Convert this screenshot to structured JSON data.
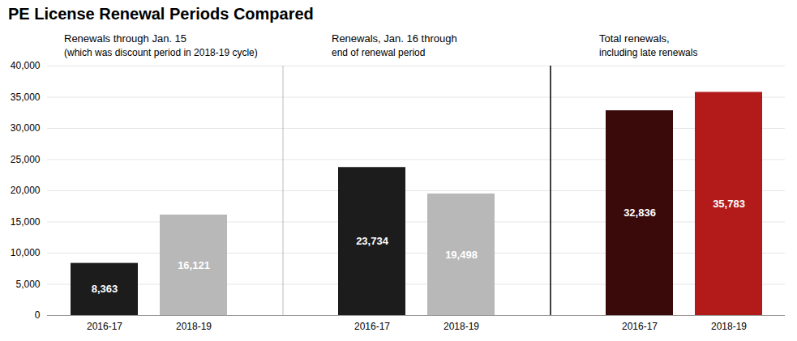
{
  "chart_data": {
    "type": "bar",
    "title": "PE License Renewal Periods Compared",
    "categories": [
      "2016-17",
      "2018-19",
      "2016-17",
      "2018-19",
      "2016-17",
      "2018-19"
    ],
    "values": [
      8363,
      16121,
      23734,
      19498,
      32836,
      35783
    ],
    "value_labels": [
      "8,363",
      "16,121",
      "23,734",
      "19,498",
      "32,836",
      "35,783"
    ],
    "data_labels": true,
    "colors": [
      "#1c1c1c",
      "#b8b8b8",
      "#1c1c1c",
      "#b8b8b8",
      "#3a0a0a",
      "#b31b1b"
    ],
    "ylim": [
      0,
      40000
    ],
    "yticks": [
      0,
      {
        "value": 5000,
        "label": "5,000"
      },
      {
        "value": 10000,
        "label": "10,000"
      },
      {
        "value": 15000,
        "label": "15,000"
      },
      {
        "value": 20000,
        "label": "20,000"
      },
      {
        "value": 25000,
        "label": "25,000"
      },
      {
        "value": 30000,
        "label": "30,000"
      },
      {
        "value": 35000,
        "label": "35,000"
      },
      {
        "value": 40000,
        "label": "40,000"
      }
    ],
    "grid": true,
    "annotations": [
      [
        "Renewals through Jan. 15",
        "(which was discount period in 2018-19 cycle)"
      ],
      [
        "Renewals, Jan. 16 through",
        "end of renewal period"
      ],
      [
        "Total renewals,",
        "including late renewals"
      ]
    ]
  }
}
